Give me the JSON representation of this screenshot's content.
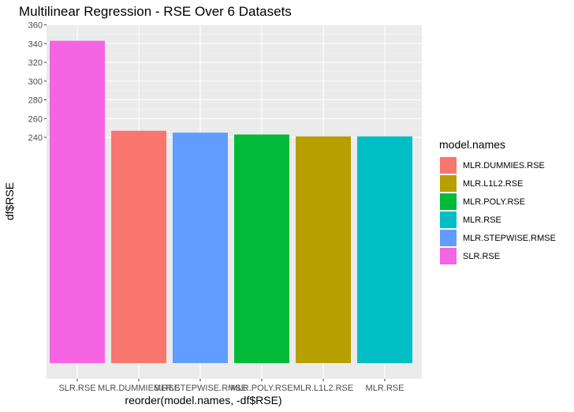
{
  "chart_data": {
    "type": "bar",
    "title": "Multilinear Regression - RSE Over 6 Datasets",
    "xlabel": "reorder(model.names, -df$RSE)",
    "ylabel": "df$RSE",
    "categories": [
      "SLR.RSE",
      "MLR.DUMMIES.RSE",
      "MLR.STEPWISE.RMSE",
      "MLR.POLY.RSE",
      "MLR.L1L2.RSE",
      "MLR.RSE"
    ],
    "values": [
      343,
      247,
      245,
      243,
      241,
      241
    ],
    "colors": [
      "#F564E3",
      "#F8766D",
      "#619CFF",
      "#00BA38",
      "#B79F00",
      "#00BFC4"
    ],
    "y_ticks": [
      240,
      260,
      280,
      300,
      320,
      340,
      360
    ],
    "ylim": [
      0,
      360
    ],
    "y_axis_break": {
      "note": "axis is not linear: bars start at a baseline at 0 but ticks shown only from 240 to 360"
    },
    "grid": true,
    "legend": {
      "title": "model.names",
      "position": "right",
      "entries": [
        {
          "label": "MLR.DUMMIES.RSE",
          "color": "#F8766D"
        },
        {
          "label": "MLR.L1L2.RSE",
          "color": "#B79F00"
        },
        {
          "label": "MLR.POLY.RSE",
          "color": "#00BA38"
        },
        {
          "label": "MLR.RSE",
          "color": "#00BFC4"
        },
        {
          "label": "MLR.STEPWISE.RMSE",
          "color": "#619CFF"
        },
        {
          "label": "SLR.RSE",
          "color": "#F564E3"
        }
      ]
    }
  }
}
